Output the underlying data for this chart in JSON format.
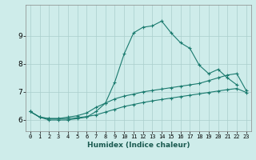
{
  "line1_x": [
    0,
    1,
    2,
    3,
    4,
    5,
    6,
    7,
    8,
    9,
    10,
    11,
    12,
    13,
    14,
    15,
    16,
    17,
    18,
    19,
    20,
    21,
    22,
    23
  ],
  "line1_y": [
    6.3,
    6.1,
    6.0,
    6.0,
    6.0,
    6.05,
    6.1,
    6.3,
    6.6,
    7.35,
    8.35,
    9.1,
    9.3,
    9.35,
    9.52,
    9.1,
    8.75,
    8.55,
    7.95,
    7.65,
    7.8,
    7.5,
    7.25,
    null
  ],
  "line2_x": [
    0,
    1,
    2,
    3,
    4,
    5,
    6,
    7,
    8,
    9,
    10,
    11,
    12,
    13,
    14,
    15,
    16,
    17,
    18,
    19,
    20,
    21,
    22,
    23
  ],
  "line2_y": [
    6.3,
    6.1,
    6.05,
    6.05,
    6.1,
    6.15,
    6.25,
    6.45,
    6.6,
    6.75,
    6.85,
    6.92,
    7.0,
    7.05,
    7.1,
    7.15,
    7.2,
    7.25,
    7.3,
    7.4,
    7.5,
    7.6,
    7.65,
    7.05
  ],
  "line3_x": [
    0,
    1,
    2,
    3,
    4,
    5,
    6,
    7,
    8,
    9,
    10,
    11,
    12,
    13,
    14,
    15,
    16,
    17,
    18,
    19,
    20,
    21,
    22,
    23
  ],
  "line3_y": [
    6.3,
    6.1,
    6.05,
    6.05,
    6.05,
    6.08,
    6.12,
    6.18,
    6.28,
    6.38,
    6.48,
    6.55,
    6.62,
    6.68,
    6.73,
    6.78,
    6.83,
    6.88,
    6.93,
    6.98,
    7.03,
    7.08,
    7.12,
    6.98
  ],
  "line_color": "#1a7a6e",
  "bg_color": "#ceecea",
  "grid_color": "#aacfcc",
  "xlabel": "Humidex (Indice chaleur)",
  "ylim": [
    5.6,
    10.1
  ],
  "xlim": [
    -0.5,
    23.5
  ],
  "xticks": [
    0,
    1,
    2,
    3,
    4,
    5,
    6,
    7,
    8,
    9,
    10,
    11,
    12,
    13,
    14,
    15,
    16,
    17,
    18,
    19,
    20,
    21,
    22,
    23
  ],
  "yticks": [
    6,
    7,
    8,
    9
  ],
  "marker": "+",
  "markersize": 3,
  "linewidth": 0.8
}
